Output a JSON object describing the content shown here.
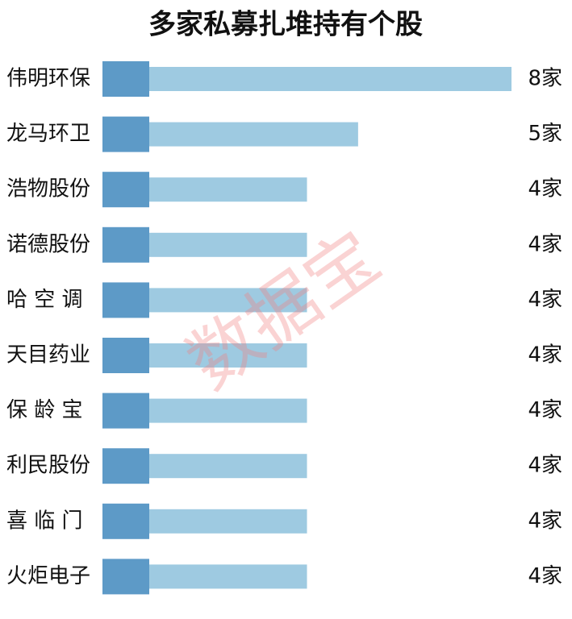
{
  "chart_data": {
    "type": "bar",
    "title": "多家私募扎堆持有个股",
    "categories": [
      "伟明环保",
      "龙马环卫",
      "浩物股份",
      "诺德股份",
      "哈 空 调",
      "天目药业",
      "保 龄 宝",
      "利民股份",
      "喜 临 门",
      "火炬电子"
    ],
    "values": [
      8,
      5,
      4,
      4,
      4,
      4,
      4,
      4,
      4,
      4
    ],
    "value_labels": [
      "8家",
      "5家",
      "4家",
      "4家",
      "4家",
      "4家",
      "4家",
      "4家",
      "4家",
      "4家"
    ],
    "color": "#9ecae1",
    "accent_color": "#5d9ac7",
    "watermark": "数据宝"
  }
}
